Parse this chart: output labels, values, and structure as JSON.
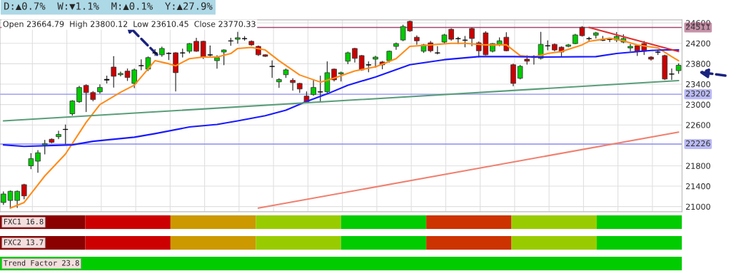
{
  "chart_data": {
    "type": "candlestick",
    "title": "D:▲0.7%  W:▼1.1%  M:▲0.1%  Y:▲27.9%",
    "annotations": [
      "Open 23664.79  High 23800.12  Low 23610.45  Close 23770.33",
      "FXC1 16.8",
      "FXC2 13.7",
      "Trend Factor 23.8"
    ],
    "categories": [
      null,
      null,
      null,
      null,
      null,
      null,
      null,
      null,
      null,
      null,
      null,
      null,
      null,
      null,
      null,
      null,
      null,
      null,
      null,
      null,
      null,
      null,
      null,
      null,
      null,
      null,
      null,
      null,
      null,
      null,
      null,
      null,
      null,
      null,
      null,
      null,
      null,
      null,
      null,
      null,
      null,
      null,
      null,
      null,
      null,
      null,
      null,
      null,
      null,
      null,
      null,
      null,
      null,
      null,
      null,
      null,
      null,
      null,
      null,
      null,
      null,
      null,
      null,
      null,
      null,
      null,
      null,
      null,
      null,
      null,
      null,
      null,
      null,
      null,
      null,
      null,
      null,
      null,
      null,
      null,
      null,
      null,
      null,
      null,
      null,
      null,
      null,
      null,
      null,
      null,
      null,
      null,
      null,
      null,
      null,
      null,
      null,
      null,
      null
    ],
    "ohlc": [
      [
        21080,
        21290,
        21040,
        21247
      ],
      [
        21120,
        21310,
        20970,
        21300
      ],
      [
        21120,
        21310,
        20980,
        21300
      ],
      [
        21430,
        21440,
        21150,
        21210
      ],
      [
        21800,
        22040,
        21740,
        21940
      ],
      [
        21890,
        22100,
        21670,
        22055
      ],
      [
        22210,
        22300,
        22030,
        22235
      ],
      [
        22320,
        22330,
        22250,
        22260
      ],
      [
        22370,
        22480,
        22330,
        22415
      ],
      [
        22510,
        22600,
        22230,
        22515
      ],
      [
        22820,
        23080,
        22790,
        23070
      ],
      [
        23055,
        23360,
        23040,
        23335
      ],
      [
        23375,
        23390,
        22860,
        23235
      ],
      [
        23235,
        23260,
        23070,
        23100
      ],
      [
        23250,
        23390,
        23220,
        23335
      ],
      [
        23480,
        23560,
        23420,
        23495
      ],
      [
        23735,
        23940,
        23340,
        23555
      ],
      [
        23585,
        23640,
        23560,
        23610
      ],
      [
        23655,
        23700,
        23470,
        23530
      ],
      [
        23415,
        23700,
        23330,
        23680
      ],
      [
        23760,
        23880,
        23680,
        23765
      ],
      [
        23695,
        23935,
        23665,
        23920
      ],
      [
        24010,
        24080,
        23960,
        24015
      ],
      [
        23975,
        24130,
        23945,
        24100
      ],
      [
        24000,
        24020,
        23880,
        24005
      ],
      [
        24015,
        24020,
        23265,
        23625
      ],
      [
        24010,
        24090,
        23930,
        24015
      ],
      [
        24045,
        24200,
        24010,
        24195
      ],
      [
        24240,
        24300,
        24040,
        24045
      ],
      [
        24240,
        24245,
        23900,
        23930
      ],
      [
        23970,
        24150,
        23950,
        23975
      ],
      [
        23860,
        23960,
        23710,
        23920
      ],
      [
        24030,
        24075,
        23780,
        24070
      ],
      [
        24245,
        24300,
        24160,
        24250
      ],
      [
        24280,
        24420,
        24200,
        24310
      ],
      [
        24290,
        24335,
        24260,
        24295
      ],
      [
        24240,
        24250,
        24160,
        24170
      ],
      [
        24140,
        24150,
        23960,
        23975
      ],
      [
        23975,
        23980,
        23940,
        23945
      ],
      [
        23745,
        23860,
        23530,
        23750
      ],
      [
        23445,
        23510,
        23335,
        23490
      ],
      [
        23585,
        23700,
        23530,
        23680
      ],
      [
        23475,
        23510,
        23280,
        23430
      ],
      [
        23415,
        23420,
        23235,
        23305
      ],
      [
        23165,
        23250,
        23040,
        23040
      ],
      [
        23195,
        23475,
        23180,
        23335
      ],
      [
        23245,
        23560,
        23060,
        23250
      ],
      [
        23250,
        23840,
        23230,
        23625
      ],
      [
        23695,
        23700,
        23460,
        23485
      ],
      [
        23600,
        23640,
        23460,
        23625
      ],
      [
        23850,
        24030,
        23800,
        24015
      ],
      [
        24100,
        24105,
        23830,
        23905
      ],
      [
        23960,
        23965,
        23670,
        23680
      ],
      [
        23775,
        23840,
        23640,
        23780
      ],
      [
        23890,
        23950,
        23730,
        23930
      ],
      [
        23835,
        23850,
        23700,
        23780
      ],
      [
        23860,
        24050,
        23830,
        24045
      ],
      [
        24140,
        24210,
        24080,
        24195
      ],
      [
        24265,
        24560,
        24250,
        24530
      ],
      [
        24630,
        24640,
        24430,
        24445
      ],
      [
        24320,
        24350,
        24180,
        24250
      ],
      [
        24045,
        24180,
        24020,
        24170
      ],
      [
        24210,
        24240,
        24030,
        24055
      ],
      [
        24010,
        24140,
        23990,
        24015
      ],
      [
        24225,
        24380,
        24190,
        24365
      ],
      [
        24475,
        24490,
        24260,
        24280
      ],
      [
        24290,
        24320,
        24190,
        24295
      ],
      [
        24260,
        24340,
        24130,
        24265
      ],
      [
        24490,
        24500,
        24150,
        24295
      ],
      [
        24210,
        24230,
        23930,
        24055
      ],
      [
        24405,
        24430,
        23970,
        23975
      ],
      [
        24045,
        24200,
        24030,
        24195
      ],
      [
        24170,
        24310,
        24150,
        24250
      ],
      [
        24320,
        24410,
        24050,
        24055
      ],
      [
        23780,
        23795,
        23365,
        23415
      ],
      [
        23515,
        23770,
        23500,
        23750
      ],
      [
        23890,
        23960,
        23790,
        23850
      ],
      [
        23945,
        23960,
        23790,
        23920
      ],
      [
        23905,
        24420,
        23890,
        24180
      ],
      [
        24150,
        24250,
        24070,
        24155
      ],
      [
        24180,
        24190,
        24050,
        24070
      ],
      [
        24125,
        24135,
        23950,
        24030
      ],
      [
        24140,
        24180,
        24130,
        24170
      ],
      [
        24195,
        24380,
        24190,
        24365
      ],
      [
        24515,
        24530,
        24340,
        24350
      ],
      [
        24290,
        24320,
        24240,
        24295
      ],
      [
        24360,
        24420,
        24300,
        24405
      ],
      [
        24260,
        24340,
        24250,
        24265
      ],
      [
        24275,
        24300,
        24230,
        24280
      ],
      [
        24265,
        24415,
        24230,
        24335
      ],
      [
        24225,
        24370,
        24210,
        24295
      ],
      [
        24110,
        24180,
        24050,
        24140
      ],
      [
        24155,
        24170,
        23960,
        24045
      ],
      [
        24195,
        24240,
        23980,
        24045
      ],
      [
        23930,
        23940,
        23870,
        23890
      ],
      [
        24025,
        24070,
        23980,
        24030
      ],
      [
        23960,
        23970,
        23490,
        23500
      ],
      [
        23595,
        23700,
        23490,
        23600
      ],
      [
        23664.79,
        23800.12,
        23610.45,
        23770.33
      ]
    ],
    "colors": [
      "#00cc00",
      "#00cc00",
      "#00cc00",
      "#cc0000",
      "#00cc00",
      "#00cc00",
      "#00cc00",
      "#cc0000",
      "#00cc00",
      "#000000",
      "#00cc00",
      "#00cc00",
      "#cc0000",
      "#cc0000",
      "#00cc00",
      "#000000",
      "#cc0000",
      "#00cc00",
      "#cc0000",
      "#00cc00",
      "#000000",
      "#00cc00",
      "#000000",
      "#00cc00",
      "#000000",
      "#cc0000",
      "#000000",
      "#00cc00",
      "#cc0000",
      "#cc0000",
      "#000000",
      "#00cc00",
      "#00cc00",
      "#000000",
      "#00cc00",
      "#000000",
      "#cc0000",
      "#cc0000",
      "#cc0000",
      "#000000",
      "#00cc00",
      "#00cc00",
      "#cc0000",
      "#cc0000",
      "#cc0000",
      "#00cc00",
      "#000000",
      "#00cc00",
      "#cc0000",
      "#00cc00",
      "#00cc00",
      "#cc0000",
      "#cc0000",
      "#000000",
      "#00cc00",
      "#cc0000",
      "#00cc00",
      "#00cc00",
      "#00cc00",
      "#cc0000",
      "#cc0000",
      "#00cc00",
      "#cc0000",
      "#000000",
      "#00cc00",
      "#cc0000",
      "#000000",
      "#000000",
      "#cc0000",
      "#cc0000",
      "#cc0000",
      "#00cc00",
      "#00cc00",
      "#cc0000",
      "#cc0000",
      "#00cc00",
      "#cc0000",
      "#cc0000",
      "#00cc00",
      "#000000",
      "#cc0000",
      "#cc0000",
      "#00cc00",
      "#00cc00",
      "#cc0000",
      "#000000",
      "#00cc00",
      "#000000",
      "#000000",
      "#00cc00",
      "#00cc00",
      "#00cc00",
      "#cc0000",
      "#cc0000",
      "#cc0000",
      "#000000",
      "#cc0000",
      "#000000",
      "#00cc00"
    ],
    "series": [
      {
        "type": "line",
        "color": "#ff8c1a",
        "values": [
          null,
          20970,
          null,
          21080,
          null,
          null,
          21600,
          null,
          null,
          22030,
          null,
          null,
          22650,
          null,
          23000,
          null,
          null,
          23240,
          null,
          23380,
          null,
          null,
          23860,
          null,
          23800,
          23760,
          null,
          23900,
          null,
          23930,
          null,
          23930,
          null,
          24000,
          24100,
          null,
          24120,
          null,
          24070,
          null,
          23860,
          null,
          null,
          23580,
          null,
          null,
          23440,
          null,
          23520,
          null,
          null,
          23660,
          null,
          null,
          23740,
          null,
          null,
          23900,
          null,
          24140,
          null,
          null,
          24170,
          null,
          null,
          24200,
          null,
          24200,
          null,
          null,
          24170,
          null,
          null,
          24170,
          null,
          23960,
          null,
          23930,
          null,
          24000,
          null,
          24040,
          null,
          null,
          24170,
          24240,
          null,
          null,
          24300,
          null,
          24250,
          null,
          24170,
          null,
          null,
          24110,
          null,
          23940,
          23860
        ]
      },
      {
        "type": "line",
        "color": "#1a1aff",
        "values": [
          22210,
          null,
          null,
          22180,
          null,
          null,
          null,
          null,
          null,
          null,
          22210,
          null,
          null,
          22280,
          null,
          null,
          null,
          null,
          null,
          22360,
          null,
          null,
          22430,
          null,
          null,
          null,
          null,
          22560,
          null,
          null,
          null,
          22610,
          null,
          null,
          22680,
          null,
          null,
          null,
          22780,
          null,
          null,
          22890,
          null,
          null,
          23060,
          null,
          null,
          23210,
          null,
          null,
          23380,
          null,
          null,
          null,
          23540,
          null,
          null,
          null,
          null,
          23780,
          null,
          null,
          null,
          null,
          23880,
          null,
          null,
          null,
          null,
          23940,
          null,
          null,
          null,
          null,
          23940,
          null,
          null,
          null,
          23930,
          null,
          null,
          null,
          null,
          null,
          null,
          null,
          23940,
          null,
          null,
          24000,
          null,
          null,
          null,
          null,
          24060,
          null,
          24070,
          null,
          24070
        ]
      },
      {
        "type": "line",
        "color": "#5a9e7a",
        "values": [
          22680,
          null,
          null,
          null,
          null,
          null,
          null,
          null,
          null,
          null,
          null,
          null,
          null,
          null,
          null,
          null,
          null,
          null,
          null,
          null,
          null,
          null,
          null,
          null,
          null,
          null,
          null,
          null,
          null,
          null,
          null,
          null,
          null,
          null,
          null,
          null,
          null,
          null,
          null,
          null,
          null,
          null,
          null,
          null,
          null,
          null,
          null,
          null,
          null,
          null,
          null,
          null,
          null,
          null,
          null,
          null,
          null,
          null,
          null,
          null,
          null,
          null,
          null,
          null,
          null,
          null,
          null,
          null,
          null,
          null,
          null,
          null,
          null,
          null,
          null,
          null,
          null,
          null,
          null,
          null,
          null,
          null,
          null,
          null,
          null,
          null,
          null,
          null,
          null,
          null,
          null,
          null,
          null,
          null,
          null,
          null,
          null,
          null,
          23470
        ]
      },
      {
        "type": "line",
        "color": "#f08070",
        "values": [
          null,
          null,
          null,
          null,
          null,
          null,
          null,
          null,
          null,
          null,
          null,
          null,
          null,
          null,
          null,
          null,
          null,
          null,
          null,
          null,
          null,
          null,
          null,
          null,
          null,
          null,
          null,
          null,
          null,
          null,
          null,
          null,
          null,
          null,
          null,
          null,
          null,
          20970,
          null,
          null,
          null,
          null,
          null,
          null,
          null,
          null,
          null,
          null,
          null,
          null,
          null,
          null,
          null,
          null,
          null,
          null,
          null,
          null,
          null,
          null,
          null,
          null,
          null,
          null,
          null,
          null,
          null,
          null,
          null,
          null,
          null,
          null,
          null,
          null,
          null,
          null,
          null,
          null,
          null,
          null,
          null,
          null,
          null,
          null,
          null,
          null,
          null,
          null,
          null,
          null,
          null,
          null,
          null,
          null,
          null,
          null,
          null,
          null,
          22460
        ]
      },
      {
        "type": "line",
        "color": "#e03030",
        "values": [
          null,
          null,
          null,
          null,
          null,
          null,
          null,
          null,
          null,
          null,
          null,
          null,
          null,
          null,
          null,
          null,
          null,
          null,
          null,
          null,
          null,
          null,
          null,
          null,
          null,
          null,
          null,
          null,
          null,
          null,
          null,
          null,
          null,
          null,
          null,
          null,
          null,
          null,
          null,
          null,
          null,
          null,
          null,
          null,
          null,
          null,
          null,
          null,
          null,
          null,
          null,
          null,
          null,
          null,
          null,
          null,
          null,
          null,
          null,
          null,
          null,
          null,
          null,
          null,
          null,
          null,
          null,
          null,
          null,
          null,
          null,
          null,
          null,
          null,
          null,
          null,
          null,
          null,
          null,
          null,
          null,
          null,
          null,
          null,
          null,
          24510,
          null,
          null,
          null,
          null,
          null,
          null,
          null,
          null,
          null,
          null,
          null,
          null,
          24040
        ]
      }
    ],
    "ref_lines": [
      {
        "axis": "y",
        "value": 24511,
        "label": "24511",
        "color": "#a04a70"
      },
      {
        "axis": "y",
        "value": 23202,
        "label": "23202",
        "color": "#8c8cf0"
      },
      {
        "axis": "y",
        "value": 22226,
        "label": "22226",
        "color": "#8c8cf0"
      }
    ],
    "ylim": [
      20900,
      24660
    ],
    "yticks": [
      21000,
      21400,
      21800,
      22600,
      23000,
      23400,
      23800,
      24200,
      24600
    ],
    "grid": true,
    "tick_labels": "y"
  }
}
